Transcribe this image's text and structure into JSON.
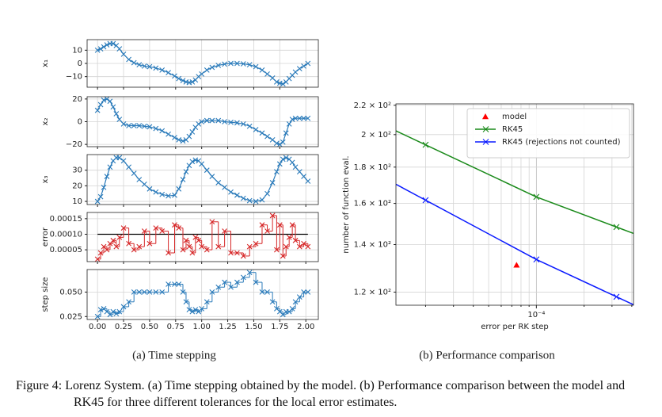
{
  "chart_data": [
    {
      "type": "line",
      "subcaption": "(a) Time stepping",
      "x": [
        0,
        0.03,
        0.06,
        0.09,
        0.12,
        0.15,
        0.18,
        0.21,
        0.25,
        0.3,
        0.35,
        0.4,
        0.45,
        0.5,
        0.56,
        0.62,
        0.68,
        0.74,
        0.78,
        0.82,
        0.85,
        0.88,
        0.91,
        0.94,
        0.97,
        1.0,
        1.05,
        1.1,
        1.16,
        1.22,
        1.28,
        1.34,
        1.4,
        1.46,
        1.52,
        1.58,
        1.63,
        1.68,
        1.72,
        1.75,
        1.78,
        1.81,
        1.84,
        1.87,
        1.9,
        1.94,
        1.98,
        2.02
      ],
      "xlim": [
        -0.1,
        2.12
      ],
      "xticks": [
        {
          "value": 0,
          "label": "0.00"
        },
        0.25,
        {
          "value": 0.5,
          "label": "0.50"
        },
        0.75,
        {
          "value": 1,
          "label": "1.00"
        },
        1.25,
        {
          "value": 1.5,
          "label": "1.50"
        },
        1.75,
        {
          "value": 2,
          "label": "2.00"
        }
      ],
      "grid": true,
      "panels": [
        {
          "ylabel": "x₁",
          "color": "#2b7bba",
          "ylim": [
            -18,
            18
          ],
          "yticks": [
            {
              "value": -10,
              "label": "−10"
            },
            0,
            10
          ],
          "values": [
            10,
            11,
            12.5,
            14,
            15,
            15,
            13.5,
            11,
            7,
            3,
            0.5,
            -1,
            -2,
            -2.5,
            -3.5,
            -5,
            -7,
            -9.5,
            -11.5,
            -13,
            -14,
            -14.5,
            -14,
            -12.5,
            -10,
            -8,
            -5,
            -3,
            -1.5,
            -0.5,
            0,
            0,
            -0.3,
            -1,
            -2.5,
            -5,
            -8,
            -11,
            -14,
            -15,
            -15.5,
            -14,
            -11.5,
            -9,
            -6.5,
            -4,
            -2,
            0
          ]
        },
        {
          "ylabel": "x₂",
          "color": "#2b7bba",
          "ylim": [
            -22,
            22
          ],
          "yticks": [
            {
              "value": -20,
              "label": "−20"
            },
            0,
            20
          ],
          "values": [
            10,
            15,
            19,
            20,
            18,
            13,
            7,
            2,
            -2,
            -3.5,
            -3.5,
            -3.5,
            -4,
            -4.5,
            -6,
            -8,
            -11,
            -14,
            -16,
            -17,
            -16,
            -13,
            -9,
            -5,
            -2,
            0,
            1,
            1,
            1,
            0,
            -0.5,
            -1,
            -2,
            -4,
            -7,
            -10,
            -13,
            -16,
            -19,
            -20,
            -18,
            -10,
            -2,
            2,
            3,
            3,
            3,
            3
          ]
        },
        {
          "ylabel": "x₃",
          "color": "#2b7bba",
          "ylim": [
            8,
            40
          ],
          "yticks": [
            10,
            20,
            30
          ],
          "values": [
            10,
            13,
            19,
            26,
            32,
            36,
            38,
            38,
            36,
            32,
            28,
            24,
            21,
            18,
            16,
            14.5,
            13.5,
            14,
            18,
            24,
            29,
            33,
            35.5,
            36.5,
            36,
            34,
            30,
            26,
            22,
            19,
            16,
            14,
            12,
            10.5,
            10,
            11,
            15,
            22,
            29,
            34,
            37,
            38,
            37,
            35,
            32,
            29,
            26,
            23
          ]
        },
        {
          "ylabel": "error",
          "color": "#d62728",
          "steps": true,
          "ylim": [
            1.2e-05,
            0.00017
          ],
          "yticks": [
            5e-05,
            {
              "value": 0.0001,
              "label": "0.00010"
            },
            0.00015
          ],
          "reference": {
            "value": 0.0001,
            "color": "#000000"
          },
          "values": [
            2e-05,
            4e-05,
            6e-05,
            5e-05,
            7e-05,
            8e-05,
            6e-05,
            9e-05,
            0.00012,
            7e-05,
            5e-05,
            6e-05,
            0.00011,
            7e-05,
            0.00012,
            0.00011,
            4e-05,
            0.00013,
            0.00012,
            5e-05,
            8e-05,
            6e-05,
            4e-05,
            9e-05,
            8e-05,
            6e-05,
            5e-05,
            0.00014,
            6e-05,
            0.00011,
            4e-05,
            4e-05,
            3e-05,
            6e-05,
            7e-05,
            0.00013,
            0.00011,
            0.00016,
            5e-05,
            0.00013,
            3e-05,
            6e-05,
            9e-05,
            0.00013,
            8e-05,
            6e-05,
            7e-05,
            6e-05
          ]
        },
        {
          "ylabel": "step size",
          "color": "#2b7bba",
          "steps": true,
          "ylim": [
            0.022,
            0.073
          ],
          "yticks": [
            0.025,
            {
              "value": 0.05,
              "label": "0.050"
            }
          ],
          "values": [
            0.025,
            0.032,
            0.033,
            0.03,
            0.027,
            0.03,
            0.028,
            0.03,
            0.035,
            0.04,
            0.05,
            0.05,
            0.05,
            0.05,
            0.05,
            0.05,
            0.058,
            0.058,
            0.058,
            0.05,
            0.04,
            0.032,
            0.03,
            0.032,
            0.03,
            0.033,
            0.04,
            0.05,
            0.055,
            0.06,
            0.055,
            0.06,
            0.065,
            0.07,
            0.06,
            0.05,
            0.05,
            0.04,
            0.033,
            0.03,
            0.027,
            0.03,
            0.03,
            0.033,
            0.04,
            0.045,
            0.05,
            0.05
          ]
        }
      ]
    },
    {
      "type": "line",
      "subcaption": "(b) Performance comparison",
      "xlog": true,
      "ylog": true,
      "xlabel": "error per RK step",
      "ylabel": "number of function eval.",
      "xlim": [
        1.3e-05,
        0.00041
      ],
      "ylim": [
        115,
        221
      ],
      "xticks": [
        {
          "value": 0.0001,
          "label": "10⁻⁴"
        }
      ],
      "xminorticks": [
        2e-05,
        3e-05,
        4e-05,
        5e-05,
        6e-05,
        7e-05,
        8e-05,
        9e-05,
        0.0002,
        0.0003,
        0.0004
      ],
      "yticks": [
        {
          "value": 120,
          "label": "1.2 × 10²"
        },
        {
          "value": 140,
          "label": "1.4 × 10²"
        },
        {
          "value": 160,
          "label": "1.6 × 10²"
        },
        {
          "value": 180,
          "label": "1.8 × 10²"
        },
        {
          "value": 200,
          "label": "2 × 10²"
        },
        {
          "value": 220,
          "label": "2.2 × 10²"
        }
      ],
      "grid": true,
      "legend": "upper right",
      "series": [
        {
          "name": "model",
          "color": "#ff0000",
          "marker": "triangle",
          "line": false,
          "x": [
            7.5e-05
          ],
          "values": [
            131
          ]
        },
        {
          "name": "RK45",
          "color": "#1a8a1a",
          "marker": "x",
          "line": true,
          "x": [
            2e-05,
            0.0001,
            0.00032
          ],
          "values": [
            193.5,
            163.4,
            148.2
          ]
        },
        {
          "name": "RK45 (rejections not counted)",
          "color": "#0a1aff",
          "marker": "x",
          "line": true,
          "x": [
            2e-05,
            0.0001,
            0.00032
          ],
          "values": [
            161.7,
            133.4,
            118.2
          ]
        }
      ]
    }
  ],
  "figure": {
    "label": "Figure 4:",
    "caption": "Lorenz System. (a) Time stepping obtained by the model. (b) Performance comparison between the model and RK45 for three different tolerances for the local error estimates."
  }
}
